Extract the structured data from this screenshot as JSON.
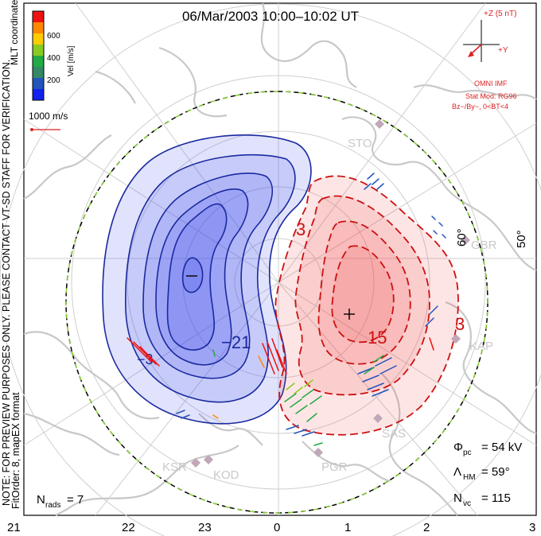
{
  "title": "06/Mar/2003  10:00–10:02 UT",
  "side_note": "NOTE: FOR PREVIEW PURPOSES ONLY. PLEASE CONTACT VT-SD STAFF FOR VERIFICATION.",
  "side_note2": "FitOrder: 8, mapEX format",
  "coords_label": "MLT coordinates",
  "colorbar": {
    "label": "Vel [m/s]",
    "ticks": [
      "600",
      "400",
      "200"
    ],
    "colors": [
      "#ee1111",
      "#ff8800",
      "#ffcc00",
      "#88cc22",
      "#22aa44",
      "#338866",
      "#2255bb",
      "#1122ee"
    ]
  },
  "ref_vector": {
    "label": "1000 m/s",
    "color": "#dd2222"
  },
  "imf": {
    "z_label": "+Z (5 nT)",
    "y_label": "+Y",
    "source": "OMNI IMF",
    "model": "Stat Mod: RG96",
    "condition": "Bz−/By−, 0<BT<4",
    "color": "#dd2222"
  },
  "stations": [
    {
      "name": "STO"
    },
    {
      "name": "GBR"
    },
    {
      "name": "KAP"
    },
    {
      "name": "SAS"
    },
    {
      "name": "PGR"
    },
    {
      "name": "KOD"
    },
    {
      "name": "KSR"
    }
  ],
  "lat_labels": [
    "60°",
    "50°"
  ],
  "contour_labels": [
    "3",
    "15",
    "3",
    "−21",
    "−3",
    "−3"
  ],
  "stats": {
    "phi_pc": "Φpc = 54 kV",
    "phi_pc_sym": "Φ",
    "phi_pc_sub": "pc",
    "phi_pc_val": "= 54 kV",
    "lambda_sym": "Λ",
    "lambda_sub": "HM",
    "lambda_val": "= 59°",
    "nvc_sym": "N",
    "nvc_sub": "vc",
    "nvc_val": "= 115",
    "nrads_sym": "N",
    "nrads_sub": "rads",
    "nrads_val": "= 7"
  },
  "mlt_ticks": [
    "21",
    "22",
    "23",
    "0",
    "1",
    "2",
    "3"
  ],
  "colors": {
    "neg_fill": "#3344ee",
    "neg_line": "#1a2aa0",
    "pos_fill": "#ee4444",
    "pos_line": "#cc1111",
    "coast": "#c8c8c8",
    "grid": "#cfcfcf"
  }
}
